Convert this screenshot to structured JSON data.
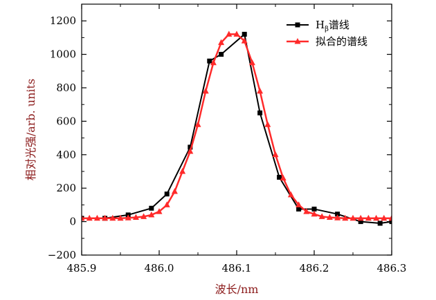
{
  "chart_data": {
    "type": "line",
    "title": "",
    "xlabel": "波长/nm",
    "ylabel": "相对光强/arb. units",
    "xlim": [
      485.9,
      486.3
    ],
    "ylim": [
      -200,
      1300
    ],
    "x_ticks": [
      "485.9",
      "486.0",
      "486.1",
      "486.2",
      "486.3"
    ],
    "x_tick_values": [
      485.9,
      486.0,
      486.1,
      486.2,
      486.3
    ],
    "y_ticks": [
      "−200",
      "0",
      "200",
      "400",
      "600",
      "800",
      "1000",
      "1200"
    ],
    "y_tick_values": [
      -200,
      0,
      200,
      400,
      600,
      800,
      1000,
      1200
    ],
    "legend_position": "top-right",
    "series": [
      {
        "name_main": "H",
        "name_sub": "β",
        "name_rest": "谱线",
        "color": "#000000",
        "marker": "square",
        "x": [
          485.9,
          485.93,
          485.96,
          485.99,
          486.01,
          486.04,
          486.065,
          486.08,
          486.11,
          486.13,
          486.155,
          486.18,
          486.2,
          486.23,
          486.26,
          486.285,
          486.3
        ],
        "y": [
          20,
          20,
          40,
          80,
          165,
          445,
          960,
          1000,
          1120,
          650,
          265,
          75,
          75,
          45,
          0,
          -10,
          0
        ]
      },
      {
        "name": "拟合的谱线",
        "color": "#ff2a2a",
        "marker": "triangle",
        "x": [
          485.9,
          485.91,
          485.92,
          485.93,
          485.94,
          485.95,
          485.96,
          485.97,
          485.98,
          485.99,
          486.0,
          486.01,
          486.02,
          486.03,
          486.04,
          486.05,
          486.06,
          486.07,
          486.08,
          486.09,
          486.1,
          486.11,
          486.12,
          486.13,
          486.14,
          486.15,
          486.16,
          486.17,
          486.18,
          486.19,
          486.2,
          486.21,
          486.22,
          486.23,
          486.24,
          486.25,
          486.26,
          486.27,
          486.28,
          486.29,
          486.3
        ],
        "y": [
          20,
          20,
          20,
          20,
          20,
          20,
          22,
          25,
          30,
          40,
          60,
          100,
          180,
          300,
          420,
          580,
          780,
          950,
          1070,
          1120,
          1120,
          1080,
          950,
          780,
          580,
          400,
          260,
          160,
          100,
          60,
          45,
          30,
          25,
          22,
          20,
          20,
          20,
          20,
          20,
          20,
          20
        ]
      }
    ]
  }
}
